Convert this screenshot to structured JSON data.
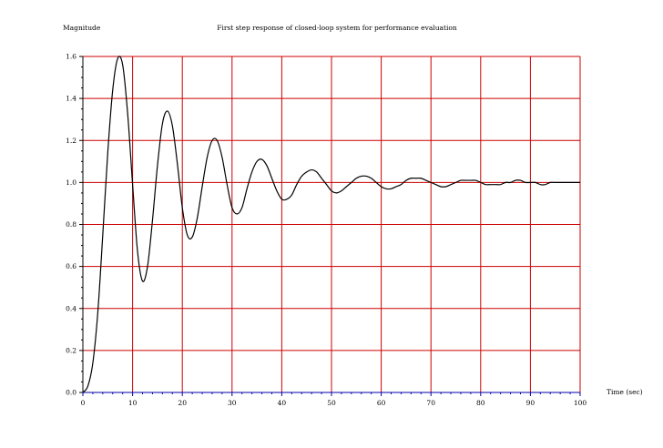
{
  "chart_data": {
    "type": "line",
    "title": "First step response of closed-loop system for performance evaluation",
    "xlabel": "Time (sec)",
    "ylabel": "Magnitude",
    "xlim": [
      0,
      100
    ],
    "ylim": [
      0,
      1.6
    ],
    "xticks": [
      "0",
      "10",
      "20",
      "30",
      "40",
      "50",
      "60",
      "70",
      "80",
      "90",
      "100"
    ],
    "yticks": [
      "0.0",
      "0.2",
      "0.4",
      "0.6",
      "0.8",
      "1.0",
      "1.2",
      "1.4",
      "1.6"
    ],
    "grid": true,
    "colors": {
      "grid": "#cc0000",
      "line": "#000000",
      "axis": "#000000",
      "x_axis_line": "#0000aa"
    },
    "series": [
      {
        "x": [
          0,
          1,
          2,
          3,
          4,
          5,
          6,
          7,
          8,
          9,
          10,
          11,
          12,
          13,
          14,
          15,
          16,
          17,
          18,
          19,
          20,
          21,
          22,
          23,
          24,
          25,
          26,
          27,
          28,
          29,
          30,
          31,
          32,
          33,
          34,
          35,
          36,
          37,
          38,
          39,
          40,
          41,
          42,
          43,
          44,
          45,
          46,
          47,
          48,
          49,
          50,
          51,
          52,
          53,
          54,
          55,
          56,
          57,
          58,
          59,
          60,
          61,
          62,
          63,
          64,
          65,
          66,
          67,
          68,
          69,
          70,
          71,
          72,
          73,
          74,
          75,
          76,
          77,
          78,
          79,
          80,
          81,
          82,
          83,
          84,
          85,
          86,
          87,
          88,
          89,
          90,
          91,
          92,
          93,
          94,
          95,
          96,
          97,
          98,
          99,
          100
        ],
        "values": [
          0.0,
          0.03,
          0.14,
          0.38,
          0.75,
          1.14,
          1.44,
          1.59,
          1.56,
          1.33,
          0.99,
          0.67,
          0.53,
          0.6,
          0.82,
          1.08,
          1.28,
          1.34,
          1.27,
          1.09,
          0.88,
          0.75,
          0.74,
          0.83,
          0.98,
          1.12,
          1.2,
          1.2,
          1.12,
          0.99,
          0.88,
          0.85,
          0.88,
          0.97,
          1.05,
          1.1,
          1.11,
          1.08,
          1.02,
          0.96,
          0.92,
          0.92,
          0.94,
          0.99,
          1.03,
          1.05,
          1.06,
          1.05,
          1.02,
          0.99,
          0.96,
          0.95,
          0.96,
          0.98,
          1.0,
          1.02,
          1.03,
          1.03,
          1.02,
          1.0,
          0.98,
          0.97,
          0.97,
          0.98,
          0.99,
          1.01,
          1.02,
          1.02,
          1.02,
          1.01,
          1.0,
          0.99,
          0.98,
          0.98,
          0.99,
          1.0,
          1.01,
          1.01,
          1.01,
          1.01,
          1.0,
          0.99,
          0.99,
          0.99,
          0.99,
          1.0,
          1.0,
          1.01,
          1.01,
          1.0,
          1.0,
          1.0,
          0.99,
          0.99,
          1.0,
          1.0,
          1.0,
          1.0,
          1.0,
          1.0,
          1.0
        ]
      }
    ]
  }
}
